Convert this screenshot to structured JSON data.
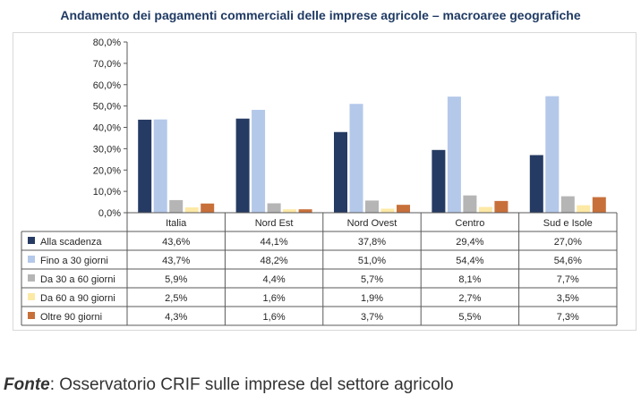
{
  "title": "Andamento dei pagamenti commerciali delle imprese agricole – macroaree geografiche",
  "source": {
    "label": "Fonte",
    "text": ": Osservatorio CRIF sulle imprese del settore agricolo"
  },
  "chart_data": {
    "type": "bar",
    "title": "Andamento dei pagamenti commerciali delle imprese agricole – macroaree geografiche",
    "categories": [
      "Italia",
      "Nord Est",
      "Nord Ovest",
      "Centro",
      "Sud e Isole"
    ],
    "ylim": [
      0,
      80
    ],
    "yticks": [
      "0,0%",
      "10,0%",
      "20,0%",
      "30,0%",
      "40,0%",
      "50,0%",
      "60,0%",
      "70,0%",
      "80,0%"
    ],
    "ytick_values": [
      0,
      10,
      20,
      30,
      40,
      50,
      60,
      70,
      80
    ],
    "series": [
      {
        "name": "Alla scadenza",
        "color": "#263b63",
        "values": [
          43.6,
          44.1,
          37.8,
          29.4,
          27.0
        ],
        "labels": [
          "43,6%",
          "44,1%",
          "37,8%",
          "29,4%",
          "27,0%"
        ]
      },
      {
        "name": "Fino a 30 giorni",
        "color": "#b4c8ea",
        "values": [
          43.7,
          48.2,
          51.0,
          54.4,
          54.6
        ],
        "labels": [
          "43,7%",
          "48,2%",
          "51,0%",
          "54,4%",
          "54,6%"
        ]
      },
      {
        "name": "Da 30 a 60 giorni",
        "color": "#b5b5b5",
        "values": [
          5.9,
          4.4,
          5.7,
          8.1,
          7.7
        ],
        "labels": [
          "5,9%",
          "4,4%",
          "5,7%",
          "8,1%",
          "7,7%"
        ]
      },
      {
        "name": "Da 60 a 90 giorni",
        "color": "#fde9a6",
        "values": [
          2.5,
          1.6,
          1.9,
          2.7,
          3.5
        ],
        "labels": [
          "2,5%",
          "1,6%",
          "1,9%",
          "2,7%",
          "3,5%"
        ]
      },
      {
        "name": "Oltre 90 giorni",
        "color": "#c8703a",
        "values": [
          4.3,
          1.6,
          3.7,
          5.5,
          7.3
        ],
        "labels": [
          "4,3%",
          "1,6%",
          "3,7%",
          "5,5%",
          "7,3%"
        ]
      }
    ]
  }
}
